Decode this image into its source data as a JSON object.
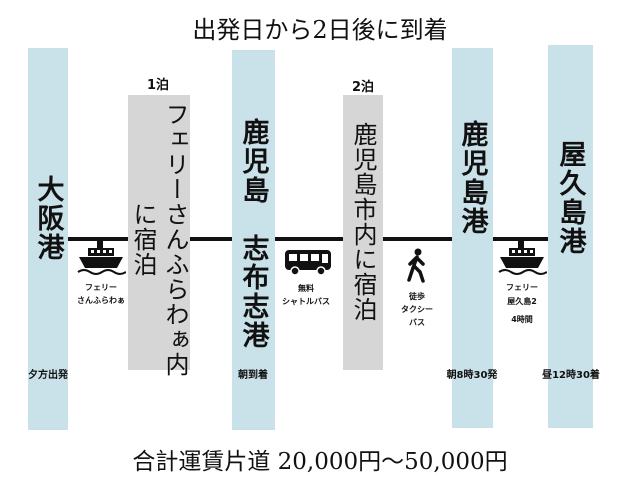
{
  "title": "出発日から2日後に到着",
  "stops": [
    {
      "label": "大阪港",
      "time": "夕方出発"
    },
    {
      "label": "鹿児島　志布志港",
      "time": "朝到着"
    },
    {
      "label": "鹿児島港",
      "time": "朝8時30発"
    },
    {
      "label": "屋久島港",
      "time": "昼12時30着"
    }
  ],
  "stays": [
    {
      "nights": "1泊",
      "label": "フェリーさんふらわぁ内",
      "note": "に宿泊"
    },
    {
      "nights": "2泊",
      "label": "鹿児島市内に宿泊"
    }
  ],
  "transfers": [
    {
      "lines": [
        "フェリー",
        "さんふらわぁ"
      ]
    },
    {
      "lines": [
        "無料",
        "シャトルバス"
      ]
    },
    {
      "lines": [
        "徒歩",
        "タクシー",
        "バス"
      ]
    },
    {
      "lines": [
        "フェリー",
        "屋久島2",
        "4時間"
      ]
    }
  ],
  "footer": "合計運賃片道 20,000円〜50,000円"
}
